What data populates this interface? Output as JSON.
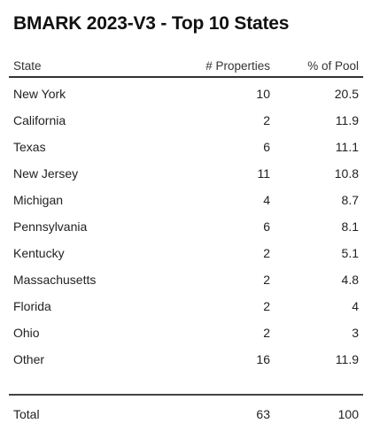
{
  "title": "BMARK 2023-V3 - Top 10 States",
  "chart_data": {
    "type": "table",
    "columns": [
      "State",
      "# Properties",
      "% of Pool"
    ],
    "rows": [
      {
        "state": "New York",
        "properties": "10",
        "pool": "20.5"
      },
      {
        "state": "California",
        "properties": "2",
        "pool": "11.9"
      },
      {
        "state": "Texas",
        "properties": "6",
        "pool": "11.1"
      },
      {
        "state": "New Jersey",
        "properties": "11",
        "pool": "10.8"
      },
      {
        "state": "Michigan",
        "properties": "4",
        "pool": "8.7"
      },
      {
        "state": "Pennsylvania",
        "properties": "6",
        "pool": "8.1"
      },
      {
        "state": "Kentucky",
        "properties": "2",
        "pool": "5.1"
      },
      {
        "state": "Massachusetts",
        "properties": "2",
        "pool": "4.8"
      },
      {
        "state": "Florida",
        "properties": "2",
        "pool": "4"
      },
      {
        "state": "Ohio",
        "properties": "2",
        "pool": "3"
      },
      {
        "state": "Other",
        "properties": "16",
        "pool": "11.9"
      }
    ],
    "total": {
      "label": "Total",
      "properties": "63",
      "pool": "100"
    }
  }
}
